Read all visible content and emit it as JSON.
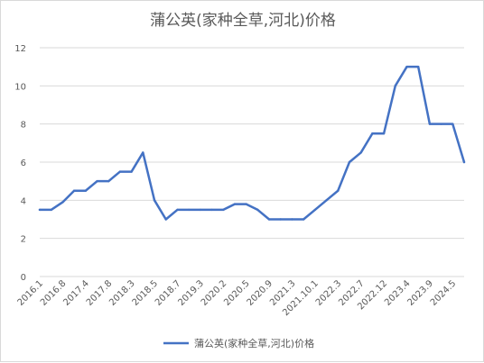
{
  "chart_data": {
    "type": "line",
    "title": "蒲公英(家种全草,河北)价格",
    "xlabel": "",
    "ylabel": "",
    "ylim": [
      0,
      12
    ],
    "yticks": [
      0,
      2,
      4,
      6,
      8,
      10,
      12
    ],
    "grid": "horizontal",
    "legend_position": "bottom",
    "x_tick_labels": [
      "2016.1",
      "2016.8",
      "2017.4",
      "2017.8",
      "2018.3",
      "2018.5",
      "2018.7",
      "2019.3",
      "2020.2",
      "2020.5",
      "2020.9",
      "2021.3",
      "2021.10.1",
      "2022.3",
      "2022.7",
      "2022.12",
      "2023.4",
      "2023.9",
      "2024.5"
    ],
    "series": [
      {
        "name": "蒲公英(家种全草,河北)价格",
        "color": "#4472c4",
        "values": [
          3.5,
          3.5,
          3.9,
          4.5,
          4.5,
          5.0,
          5.0,
          5.5,
          5.5,
          6.5,
          4.0,
          3.0,
          3.5,
          3.5,
          3.5,
          3.5,
          3.5,
          3.8,
          3.8,
          3.5,
          3.0,
          3.0,
          3.0,
          3.0,
          3.5,
          4.0,
          4.5,
          6.0,
          6.5,
          7.5,
          7.5,
          10.0,
          11.0,
          11.0,
          8.0,
          8.0,
          8.0,
          6.0
        ]
      }
    ]
  }
}
